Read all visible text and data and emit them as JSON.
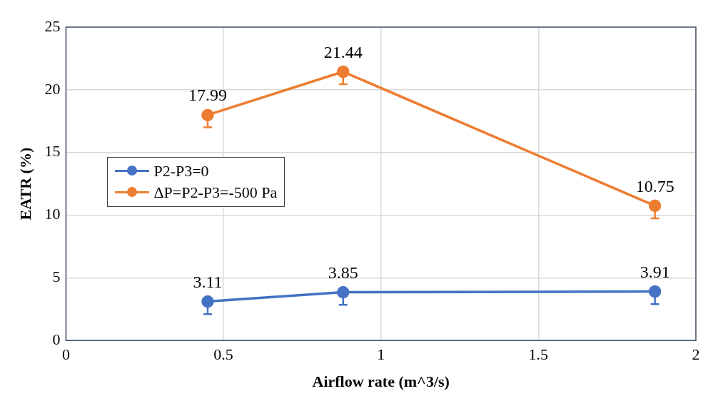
{
  "chart_data": {
    "type": "line",
    "xlabel": "Airflow rate (m^3/s)",
    "ylabel": "EATR (%)",
    "xlim": [
      0,
      2
    ],
    "xticks": [
      0,
      0.5,
      1,
      1.5,
      2
    ],
    "ylim": [
      0,
      25
    ],
    "yticks": [
      0,
      5,
      10,
      15,
      20,
      25
    ],
    "grid": true,
    "legend": "left",
    "marker": "circle",
    "line_style": "solid",
    "data_labels": true,
    "series": [
      {
        "name": "P2-P3=0",
        "color": "#4472c4",
        "x": [
          0.45,
          0.88,
          1.87
        ],
        "values": [
          3.11,
          3.85,
          3.91
        ],
        "errors": [
          [
            2.1,
            3.11
          ],
          [
            2.85,
            3.85
          ],
          [
            2.9,
            3.91
          ]
        ]
      },
      {
        "name": "ΔP=P2-P3=-500 Pa",
        "color": "#ed7d31",
        "x": [
          0.45,
          0.88,
          1.87
        ],
        "values": [
          17.99,
          21.44,
          10.75
        ],
        "errors": [
          [
            17,
            17.99
          ],
          [
            20.45,
            21.44
          ],
          [
            9.75,
            10.75
          ]
        ]
      }
    ]
  }
}
